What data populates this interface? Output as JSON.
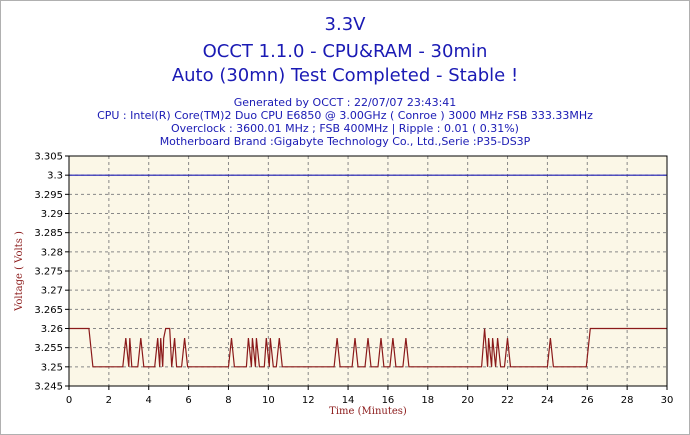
{
  "header": {
    "title_line1": "3.3V",
    "title_line2": "OCCT 1.1.0 - CPU&RAM - 30min",
    "title_line3": "Auto (30mn) Test Completed - Stable !",
    "info_line1": "Generated by OCCT : 22/07/07 23:43:41",
    "info_line2": "CPU : Intel(R) Core(TM)2 Duo CPU     E6850  @ 3.00GHz ( Conroe ) 3000 MHz FSB 333.33MHz",
    "info_line3": "Overclock : 3600.01 MHz ; FSB 400MHz | Ripple : 0.01 ( 0.31%)",
    "info_line4": "Motherboard Brand :Gigabyte Technology Co., Ltd.,Serie :P35-DS3P"
  },
  "colors": {
    "title": "#1a1ab4",
    "plot_background": "#fbf7e7",
    "reference_line": "#1a1ab4",
    "voltage_line": "#8b1a1a",
    "axis_label": "#8b1a1a",
    "grid": "#888888"
  },
  "chart_data": {
    "type": "line",
    "xlabel": "Time (Minutes)",
    "ylabel": "Voltage ( Volts )",
    "xlim": [
      0,
      30
    ],
    "ylim": [
      3.245,
      3.305
    ],
    "x_ticks": [
      0,
      2,
      4,
      6,
      8,
      10,
      12,
      14,
      16,
      18,
      20,
      22,
      24,
      26,
      28,
      30
    ],
    "y_ticks": [
      "3.245",
      "3.25",
      "3.255",
      "3.26",
      "3.265",
      "3.27",
      "3.275",
      "3.28",
      "3.285",
      "3.29",
      "3.295",
      "3.3",
      "3.305"
    ],
    "grid": true,
    "reference": {
      "y": 3.3
    },
    "series": [
      {
        "points": [
          [
            0,
            3.26
          ],
          [
            1.0,
            3.26
          ],
          [
            1.2,
            3.25
          ],
          [
            2.7,
            3.25
          ],
          [
            2.85,
            3.2575
          ],
          [
            3.0,
            3.25
          ],
          [
            3.05,
            3.2575
          ],
          [
            3.15,
            3.25
          ],
          [
            3.45,
            3.25
          ],
          [
            3.6,
            3.2575
          ],
          [
            3.75,
            3.25
          ],
          [
            4.3,
            3.25
          ],
          [
            4.45,
            3.2575
          ],
          [
            4.55,
            3.25
          ],
          [
            4.6,
            3.2575
          ],
          [
            4.7,
            3.25
          ],
          [
            4.75,
            3.2575
          ],
          [
            4.85,
            3.26
          ],
          [
            5.05,
            3.26
          ],
          [
            5.15,
            3.25
          ],
          [
            5.3,
            3.2575
          ],
          [
            5.4,
            3.25
          ],
          [
            5.65,
            3.25
          ],
          [
            5.8,
            3.2575
          ],
          [
            5.95,
            3.25
          ],
          [
            8.0,
            3.25
          ],
          [
            8.15,
            3.2575
          ],
          [
            8.3,
            3.25
          ],
          [
            8.9,
            3.25
          ],
          [
            9.0,
            3.2575
          ],
          [
            9.15,
            3.25
          ],
          [
            9.2,
            3.2575
          ],
          [
            9.35,
            3.25
          ],
          [
            9.4,
            3.2575
          ],
          [
            9.55,
            3.25
          ],
          [
            9.8,
            3.25
          ],
          [
            9.9,
            3.2575
          ],
          [
            10.05,
            3.25
          ],
          [
            10.1,
            3.2575
          ],
          [
            10.25,
            3.25
          ],
          [
            10.4,
            3.25
          ],
          [
            10.55,
            3.2575
          ],
          [
            10.7,
            3.25
          ],
          [
            13.3,
            3.25
          ],
          [
            13.45,
            3.2575
          ],
          [
            13.6,
            3.25
          ],
          [
            14.2,
            3.25
          ],
          [
            14.35,
            3.2575
          ],
          [
            14.5,
            3.25
          ],
          [
            14.85,
            3.25
          ],
          [
            15.0,
            3.2575
          ],
          [
            15.15,
            3.25
          ],
          [
            15.5,
            3.25
          ],
          [
            15.65,
            3.2575
          ],
          [
            15.8,
            3.25
          ],
          [
            16.1,
            3.25
          ],
          [
            16.25,
            3.2575
          ],
          [
            16.4,
            3.25
          ],
          [
            16.75,
            3.25
          ],
          [
            16.9,
            3.2575
          ],
          [
            17.05,
            3.25
          ],
          [
            20.7,
            3.25
          ],
          [
            20.85,
            3.26
          ],
          [
            21.0,
            3.25
          ],
          [
            21.05,
            3.2575
          ],
          [
            21.2,
            3.25
          ],
          [
            21.25,
            3.2575
          ],
          [
            21.4,
            3.25
          ],
          [
            21.5,
            3.2575
          ],
          [
            21.65,
            3.25
          ],
          [
            21.85,
            3.25
          ],
          [
            22.0,
            3.2575
          ],
          [
            22.15,
            3.25
          ],
          [
            24.0,
            3.25
          ],
          [
            24.15,
            3.2575
          ],
          [
            24.3,
            3.25
          ],
          [
            25.95,
            3.25
          ],
          [
            26.15,
            3.26
          ],
          [
            30,
            3.26
          ]
        ]
      }
    ]
  }
}
